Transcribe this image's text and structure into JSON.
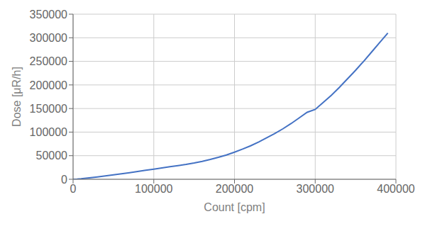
{
  "chart_data": {
    "type": "line",
    "xlabel": "Count [cpm]",
    "ylabel": "Dose [μR/h]",
    "x": [
      0,
      5000,
      10000,
      20000,
      30000,
      40000,
      50000,
      60000,
      70000,
      80000,
      90000,
      100000,
      110000,
      120000,
      130000,
      140000,
      150000,
      160000,
      170000,
      180000,
      190000,
      200000,
      210000,
      220000,
      230000,
      240000,
      250000,
      260000,
      270000,
      280000,
      290000,
      300000,
      310000,
      320000,
      330000,
      340000,
      350000,
      360000,
      370000,
      380000,
      390000
    ],
    "values": [
      0,
      500,
      1200,
      3000,
      5000,
      7200,
      9500,
      11800,
      14000,
      16500,
      19000,
      21500,
      24000,
      26500,
      29000,
      31500,
      34500,
      38000,
      42000,
      46500,
      51500,
      57500,
      64000,
      71000,
      79000,
      88000,
      97000,
      107000,
      118000,
      130000,
      142000,
      148000,
      163000,
      178000,
      195000,
      213000,
      231000,
      250000,
      270000,
      290000,
      310000
    ],
    "color": "#4472C4",
    "xlim": [
      0,
      400000
    ],
    "ylim": [
      0,
      350000
    ],
    "xticks": [
      0,
      100000,
      200000,
      300000,
      400000
    ],
    "yticks": [
      0,
      50000,
      100000,
      150000,
      200000,
      250000,
      300000,
      350000
    ],
    "grid": true
  }
}
